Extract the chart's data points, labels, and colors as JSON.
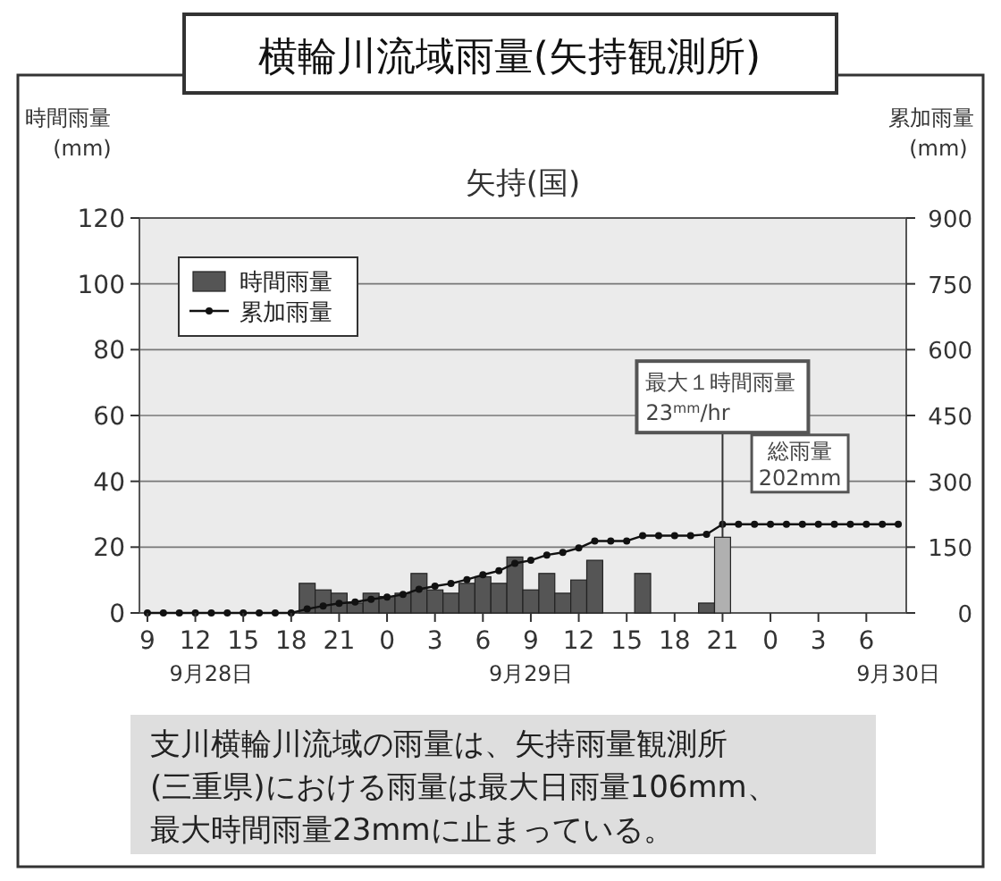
{
  "chart_data": {
    "type": "bar",
    "title": "横輪川流域雨量(矢持観測所)",
    "subtitle": "矢持(国)",
    "ylabel": "時間雨量\n(mm)",
    "y2label": "累加雨量\n(mm)",
    "categories": [
      "9",
      null,
      null,
      "12",
      null,
      null,
      "15",
      null,
      null,
      "18",
      null,
      null,
      "21",
      null,
      null,
      "0",
      null,
      null,
      "3",
      null,
      null,
      "6",
      null,
      null,
      "9",
      null,
      null,
      "12",
      null,
      null,
      "15",
      null,
      null,
      "18",
      null,
      null,
      "21",
      null,
      null,
      "0",
      null,
      null,
      "3",
      null,
      null,
      "6",
      null,
      null
    ],
    "series": [
      {
        "name": "時間雨量",
        "color": "#555555",
        "colors": [
          "#555555",
          "#555555",
          "#555555",
          "#555555",
          "#555555",
          "#555555",
          "#555555",
          "#555555",
          "#555555",
          "#555555",
          "#555555",
          "#555555",
          "#555555",
          "#555555",
          "#555555",
          "#555555",
          "#555555",
          "#555555",
          "#555555",
          "#555555",
          "#555555",
          "#555555",
          "#555555",
          "#555555",
          "#555555",
          "#555555",
          "#555555",
          "#555555",
          "#555555",
          "#555555",
          "#555555",
          "#555555",
          "#555555",
          "#555555",
          "#555555",
          "#555555",
          "#b0b0b0",
          "#555555",
          "#555555",
          "#555555",
          "#555555",
          "#555555",
          "#555555",
          "#555555",
          "#555555",
          "#555555",
          "#555555",
          "#555555"
        ],
        "values": [
          0,
          0,
          0,
          0,
          0,
          0,
          0,
          0,
          0,
          0,
          9,
          7,
          6,
          3,
          6,
          5,
          6,
          12,
          7,
          6,
          9,
          11,
          9,
          17,
          7,
          12,
          6,
          10,
          16,
          0,
          0,
          12,
          0,
          0,
          0,
          3,
          23,
          0,
          0,
          0,
          0,
          0,
          0,
          0,
          0,
          0,
          0,
          0
        ]
      },
      {
        "name": "累加雨量",
        "type": "line",
        "axis": "y2",
        "color": "#111111",
        "values": [
          0,
          0,
          0,
          0,
          0,
          0,
          0,
          0,
          0,
          0,
          9,
          16,
          22,
          25,
          31,
          36,
          42,
          54,
          61,
          67,
          76,
          87,
          96,
          113,
          120,
          132,
          138,
          148,
          164,
          164,
          164,
          176,
          176,
          176,
          176,
          179,
          202,
          202,
          202,
          202,
          202,
          202,
          202,
          202,
          202,
          202,
          202,
          202
        ]
      }
    ],
    "ylim": [
      0,
      120
    ],
    "yticks": [
      0,
      20,
      40,
      60,
      80,
      100,
      120
    ],
    "y2lim": [
      0,
      900
    ],
    "y2ticks": [
      0,
      150,
      300,
      450,
      600,
      750,
      900
    ],
    "grid": "y",
    "legend": "top left",
    "marker": "circle",
    "line_style": "solid",
    "annotations": [
      {
        "text": "最大１時間雨量\n23$^{mm}$/hr",
        "y": 23
      },
      "総雨量\n202mm",
      "9月28日",
      "9月29日",
      "9月30日",
      "支川横輪川流域の雨量は、矢持雨量観測所(三重県)における雨量は最大日雨量106mm、最大時間雨量23mmに止まっている。"
    ]
  }
}
